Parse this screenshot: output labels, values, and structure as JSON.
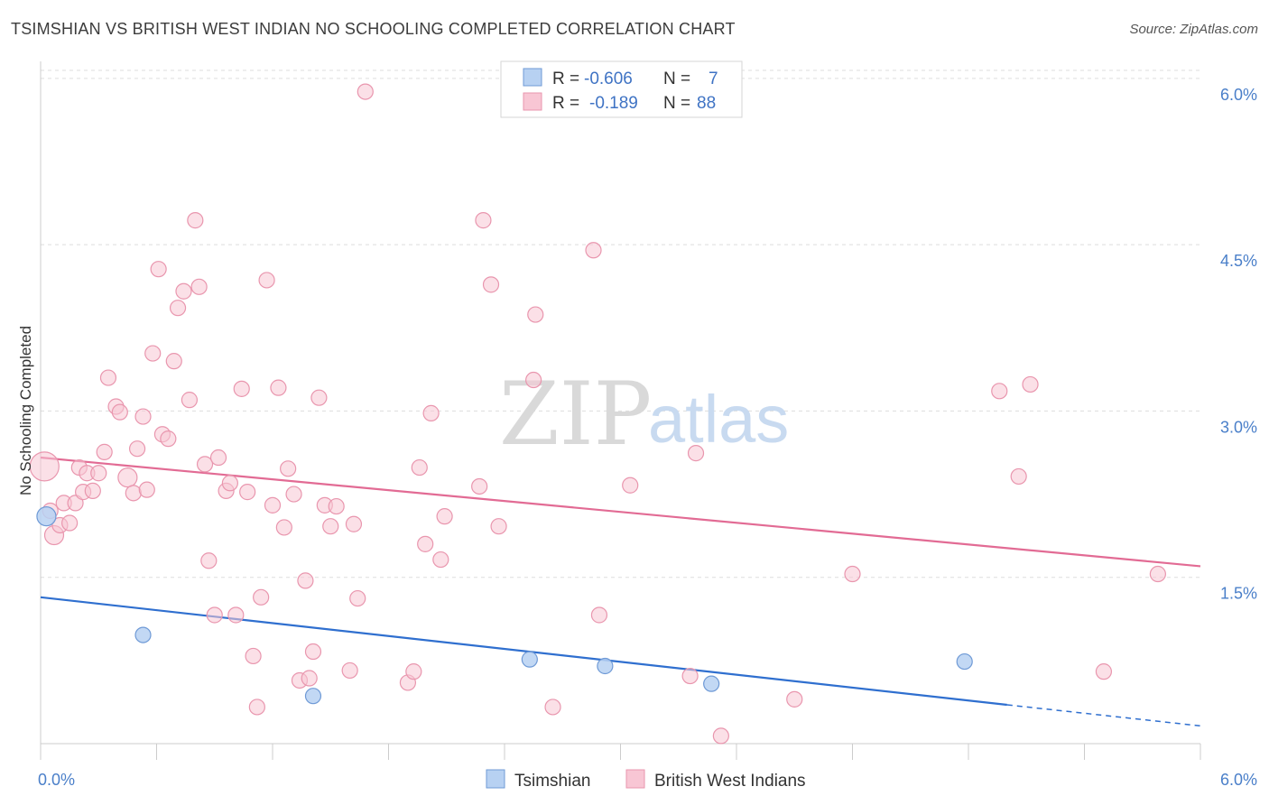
{
  "title": "TSIMSHIAN VS BRITISH WEST INDIAN NO SCHOOLING COMPLETED CORRELATION CHART",
  "source": "Source: ZipAtlas.com",
  "watermark": {
    "zip": "ZIP",
    "atlas": "atlas"
  },
  "colors": {
    "blue_fill": "#b7d1f2",
    "blue_stroke": "#6f9ad6",
    "blue_line": "#2f6fcf",
    "pink_fill": "#f8c6d4",
    "pink_stroke": "#e996ae",
    "pink_line": "#e26b94",
    "grid": "#dddddd",
    "axis_text": "#4a7fc9"
  },
  "legend": {
    "rows": [
      {
        "r_label": "R =",
        "r_value": "-0.606",
        "n_label": "N =",
        "n_value": "7"
      },
      {
        "r_label": "R =",
        "r_value": "-0.189",
        "n_label": "N =",
        "n_value": "88"
      }
    ]
  },
  "chart_data": {
    "type": "scatter",
    "xlabel": "",
    "ylabel": "No Schooling Completed",
    "xlim": [
      0,
      6
    ],
    "ylim": [
      0,
      6.3
    ],
    "x_tick_labels": [
      "0.0%",
      "6.0%"
    ],
    "y_ticks": [
      1.5,
      3.0,
      4.5,
      6.0
    ],
    "y_tick_labels": [
      "1.5%",
      "3.0%",
      "4.5%",
      "6.0%"
    ],
    "grid": true,
    "legend_position": "bottom-center",
    "series": [
      {
        "name": "Tsimshian",
        "r": -0.606,
        "n": 7,
        "points": [
          [
            0.03,
            2.05
          ],
          [
            0.53,
            0.98
          ],
          [
            1.41,
            0.43
          ],
          [
            2.53,
            0.76
          ],
          [
            2.92,
            0.7
          ],
          [
            3.47,
            0.54
          ],
          [
            4.78,
            0.74
          ]
        ],
        "trend": {
          "x0": 0.0,
          "y0": 1.32,
          "x1": 5.0,
          "y1": 0.35,
          "dash_x1": 6.0,
          "dash_y1": 0.16
        }
      },
      {
        "name": "British West Indians",
        "r": -0.189,
        "n": 88,
        "points": [
          [
            0.02,
            2.5
          ],
          [
            0.05,
            2.1
          ],
          [
            0.07,
            1.88
          ],
          [
            0.1,
            1.97
          ],
          [
            0.12,
            2.17
          ],
          [
            0.15,
            1.99
          ],
          [
            0.18,
            2.17
          ],
          [
            0.2,
            2.49
          ],
          [
            0.22,
            2.27
          ],
          [
            0.24,
            2.44
          ],
          [
            0.27,
            2.28
          ],
          [
            0.3,
            2.44
          ],
          [
            0.33,
            2.63
          ],
          [
            0.35,
            3.3
          ],
          [
            0.39,
            3.04
          ],
          [
            0.41,
            2.99
          ],
          [
            0.45,
            2.4
          ],
          [
            0.48,
            2.26
          ],
          [
            0.5,
            2.66
          ],
          [
            0.53,
            2.95
          ],
          [
            0.55,
            2.29
          ],
          [
            0.58,
            3.52
          ],
          [
            0.61,
            4.28
          ],
          [
            0.63,
            2.79
          ],
          [
            0.66,
            2.75
          ],
          [
            0.69,
            3.45
          ],
          [
            0.71,
            3.93
          ],
          [
            0.74,
            4.08
          ],
          [
            0.77,
            3.1
          ],
          [
            0.8,
            4.72
          ],
          [
            0.82,
            4.12
          ],
          [
            0.85,
            2.52
          ],
          [
            0.87,
            1.65
          ],
          [
            0.9,
            1.16
          ],
          [
            0.92,
            2.58
          ],
          [
            0.96,
            2.28
          ],
          [
            0.98,
            2.35
          ],
          [
            1.01,
            1.16
          ],
          [
            1.04,
            3.2
          ],
          [
            1.07,
            2.27
          ],
          [
            1.1,
            0.79
          ],
          [
            1.12,
            0.33
          ],
          [
            1.14,
            1.32
          ],
          [
            1.17,
            4.18
          ],
          [
            1.2,
            2.15
          ],
          [
            1.23,
            3.21
          ],
          [
            1.26,
            1.95
          ],
          [
            1.28,
            2.48
          ],
          [
            1.31,
            2.25
          ],
          [
            1.34,
            0.57
          ],
          [
            1.37,
            1.47
          ],
          [
            1.39,
            0.59
          ],
          [
            1.41,
            0.83
          ],
          [
            1.44,
            3.12
          ],
          [
            1.47,
            2.15
          ],
          [
            1.5,
            1.96
          ],
          [
            1.53,
            2.14
          ],
          [
            1.6,
            0.66
          ],
          [
            1.62,
            1.98
          ],
          [
            1.64,
            1.31
          ],
          [
            1.68,
            5.88
          ],
          [
            1.9,
            0.55
          ],
          [
            1.93,
            0.65
          ],
          [
            1.96,
            2.49
          ],
          [
            1.99,
            1.8
          ],
          [
            2.02,
            2.98
          ],
          [
            2.07,
            1.66
          ],
          [
            2.09,
            2.05
          ],
          [
            2.27,
            2.32
          ],
          [
            2.29,
            4.72
          ],
          [
            2.33,
            4.14
          ],
          [
            2.37,
            1.96
          ],
          [
            2.55,
            3.28
          ],
          [
            2.56,
            3.87
          ],
          [
            2.65,
            0.33
          ],
          [
            2.86,
            4.45
          ],
          [
            2.89,
            1.16
          ],
          [
            3.05,
            2.33
          ],
          [
            3.36,
            0.61
          ],
          [
            3.39,
            2.62
          ],
          [
            3.52,
            0.07
          ],
          [
            3.9,
            0.4
          ],
          [
            4.2,
            1.53
          ],
          [
            4.96,
            3.18
          ],
          [
            5.06,
            2.41
          ],
          [
            5.12,
            3.24
          ],
          [
            5.5,
            0.65
          ],
          [
            5.78,
            1.53
          ]
        ],
        "trend": {
          "x0": 0.0,
          "y0": 2.58,
          "x1": 6.0,
          "y1": 1.6
        }
      }
    ]
  }
}
